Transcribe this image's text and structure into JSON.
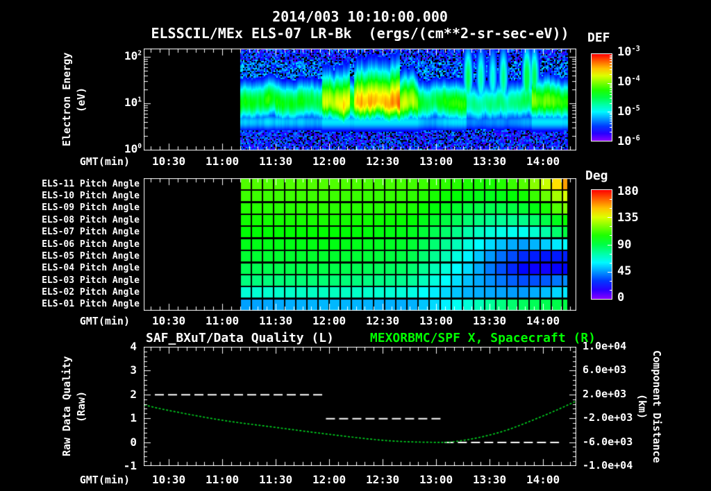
{
  "colors": {
    "background": "#000000",
    "foreground": "#ffffff",
    "title_green": "#00ff00",
    "curve_green": "#00d020"
  },
  "header": {
    "title": "2014/003 10:10:00.000",
    "subtitle": "ELSSCIL/MEx ELS-07 LR-Bk  (ergs/(cm**2-sr-sec-eV))"
  },
  "time_axis": {
    "label": "GMT(min)",
    "tick_labels": [
      "10:30",
      "11:00",
      "11:30",
      "12:00",
      "12:30",
      "13:00",
      "13:30",
      "14:00"
    ],
    "tick_hours": [
      10.5,
      11.0,
      11.5,
      12.0,
      12.5,
      13.0,
      13.5,
      14.0
    ],
    "range_hours": [
      10.266,
      14.311
    ]
  },
  "panel1": {
    "ylabel": "Electron Energy",
    "ylabel_units": "(eV)",
    "ytick_exponents": [
      "2",
      "1",
      "0"
    ],
    "colorbar": {
      "title": "DEF",
      "label_exponents": [
        "-3",
        "-4",
        "-5",
        "-6"
      ]
    }
  },
  "panel2": {
    "row_labels": [
      "ELS-11 Pitch Angle",
      "ELS-10 Pitch Angle",
      "ELS-09 Pitch Angle",
      "ELS-08 Pitch Angle",
      "ELS-07 Pitch Angle",
      "ELS-06 Pitch Angle",
      "ELS-05 Pitch Angle",
      "ELS-04 Pitch Angle",
      "ELS-03 Pitch Angle",
      "ELS-02 Pitch Angle",
      "ELS-01 Pitch Angle"
    ],
    "colorbar": {
      "title": "Deg",
      "labels": [
        "180",
        "135",
        "90",
        "45",
        "0"
      ]
    }
  },
  "panel3": {
    "title_left": "SAF_BXuT/Data Quality (L)",
    "title_right": "MEXORBMC/SPF X, Spacecraft (R)",
    "ylabel_left": "Raw Data Quality",
    "ylabel_left_units": "(Raw)",
    "left_tick_labels": [
      "4",
      "3",
      "2",
      "1",
      "0",
      "-1"
    ],
    "left_tick_values": [
      4,
      3,
      2,
      1,
      0,
      -1
    ],
    "ylabel_right": "Component Distance",
    "ylabel_right_units": "(km)",
    "right_tick_labels": [
      "1.0e+04",
      "6.0e+03",
      "2.0e+03",
      "-2.0e+03",
      "-6.0e+03",
      "-1.0e+04"
    ]
  },
  "chart_data": [
    {
      "type": "heatmap",
      "name": "electron-energy-spectrogram",
      "title": "ELSSCIL/MEx ELS-07 LR-Bk (ergs/(cm**2-sr-sec-eV))",
      "xlabel": "GMT(min)",
      "ylabel": "Electron Energy (eV)",
      "x_ticks": [
        "10:30",
        "11:00",
        "11:30",
        "12:00",
        "12:30",
        "13:00",
        "13:30",
        "14:00"
      ],
      "x_range_hours": [
        10.266,
        14.311
      ],
      "y_log10_ev_range": [
        0,
        2.18
      ],
      "colorbar": {
        "title": "DEF",
        "units": "ergs/(cm**2-sr-sec-eV)",
        "log10_range": [
          -6,
          -3
        ]
      },
      "data_hours": [
        11.169,
        14.234
      ],
      "band_center_log_ev": 1.02,
      "band_sigma": 0.3,
      "intensity_segments": [
        [
          11.17,
          11.93,
          0.6
        ],
        [
          11.93,
          12.2,
          0.84
        ],
        [
          12.2,
          12.24,
          0.62
        ],
        [
          12.24,
          12.66,
          0.84
        ],
        [
          12.66,
          12.83,
          0.66
        ],
        [
          12.83,
          13.28,
          0.58
        ],
        [
          13.28,
          13.9,
          0.44
        ],
        [
          13.9,
          14.1,
          0.66
        ],
        [
          14.1,
          14.24,
          0.6
        ]
      ],
      "plumes": [
        [
          13.3,
          0.5
        ],
        [
          13.42,
          0.42
        ],
        [
          13.53,
          0.38
        ],
        [
          13.63,
          0.45
        ],
        [
          13.85,
          0.55
        ],
        [
          13.92,
          0.5
        ]
      ]
    },
    {
      "type": "heatmap",
      "name": "pitch-angle-grid",
      "unit": "degrees",
      "value_range": [
        0,
        180
      ],
      "colorbar": {
        "title": "Deg",
        "ticks": [
          180,
          135,
          90,
          45,
          0
        ]
      },
      "data_hours": [
        11.169,
        14.234
      ],
      "control_hours": [
        11.17,
        12.0,
        12.75,
        13.05,
        13.3,
        13.55,
        13.8,
        14.0,
        14.23
      ],
      "series": [
        {
          "name": "ELS-11",
          "values": [
            113,
            113,
            111,
            108,
            105,
            104,
            112,
            128,
            158
          ]
        },
        {
          "name": "ELS-10",
          "values": [
            110,
            110,
            108,
            103,
            98,
            96,
            102,
            114,
            136
          ]
        },
        {
          "name": "ELS-09",
          "values": [
            106,
            107,
            105,
            98,
            91,
            88,
            92,
            102,
            122
          ]
        },
        {
          "name": "ELS-08",
          "values": [
            103,
            104,
            101,
            92,
            83,
            77,
            78,
            88,
            103
          ]
        },
        {
          "name": "ELS-07",
          "values": [
            100,
            101,
            97,
            86,
            74,
            65,
            62,
            72,
            93
          ]
        },
        {
          "name": "ELS-06",
          "values": [
            97,
            98,
            94,
            80,
            66,
            53,
            45,
            52,
            62
          ]
        },
        {
          "name": "ELS-05",
          "values": [
            93,
            94,
            90,
            75,
            59,
            42,
            28,
            24,
            26
          ]
        },
        {
          "name": "ELS-04",
          "values": [
            88,
            90,
            85,
            69,
            55,
            37,
            22,
            18,
            22
          ]
        },
        {
          "name": "ELS-03",
          "values": [
            81,
            83,
            78,
            63,
            51,
            42,
            33,
            34,
            44
          ]
        },
        {
          "name": "ELS-02",
          "values": [
            67,
            71,
            66,
            56,
            49,
            47,
            45,
            50,
            58
          ]
        },
        {
          "name": "ELS-01",
          "values": [
            46,
            50,
            48,
            57,
            67,
            79,
            86,
            88,
            90
          ]
        }
      ]
    },
    {
      "type": "line",
      "name": "quality-and-spacecraft-distance",
      "titles": {
        "left": "SAF_BXuT/Data Quality (L)",
        "right": "MEXORBMC/SPF X, Spacecraft (R)"
      },
      "left_axis": {
        "label": "Raw Data Quality (Raw)",
        "range": [
          -1,
          4
        ]
      },
      "right_axis": {
        "label": "Component Distance (km)",
        "range": [
          -10000,
          10000
        ]
      },
      "quality_segments": [
        {
          "hours": [
            10.37,
            11.97
          ],
          "value": 2
        },
        {
          "hours": [
            11.97,
            13.08
          ],
          "value": 1
        },
        {
          "hours": [
            13.08,
            14.15
          ],
          "value": 0
        }
      ],
      "spacecraft_x": {
        "hours": [
          10.27,
          10.5,
          11.0,
          11.5,
          12.0,
          12.5,
          12.9,
          13.2,
          13.6,
          14.0,
          14.31
        ],
        "km": [
          250,
          -680,
          -2320,
          -3520,
          -4680,
          -5680,
          -6000,
          -5840,
          -4320,
          -1600,
          880
        ]
      }
    }
  ]
}
